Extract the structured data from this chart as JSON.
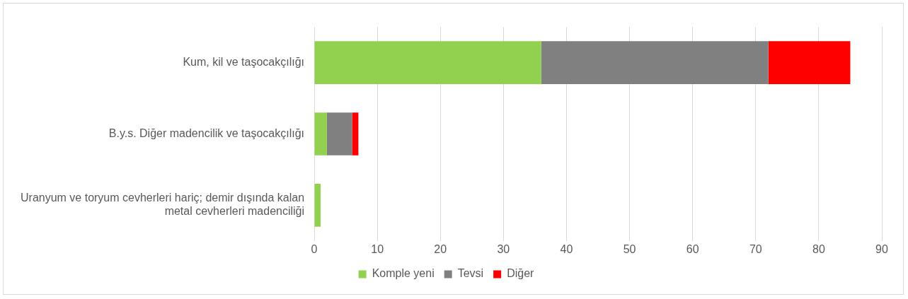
{
  "chart_data": {
    "type": "bar",
    "orientation": "horizontal",
    "stacked": true,
    "categories": [
      "Kum, kil ve taşocakçılığı",
      "B.y.s. Diğer madencilik ve taşocakçılığı",
      "Uranyum ve toryum cevherleri hariç; demir dışında kalan metal cevherleri madenciliği"
    ],
    "series": [
      {
        "name": "Komple yeni",
        "color": "#92d050",
        "values": [
          36,
          2,
          1
        ]
      },
      {
        "name": "Tevsi",
        "color": "#808080",
        "values": [
          36,
          4,
          0
        ]
      },
      {
        "name": "Diğer",
        "color": "#ff0000",
        "values": [
          13,
          1,
          0
        ]
      }
    ],
    "xlim": [
      0,
      90
    ],
    "xticks": [
      0,
      10,
      20,
      30,
      40,
      50,
      60,
      70,
      80,
      90
    ],
    "grid": "x",
    "legend": "bottom"
  }
}
